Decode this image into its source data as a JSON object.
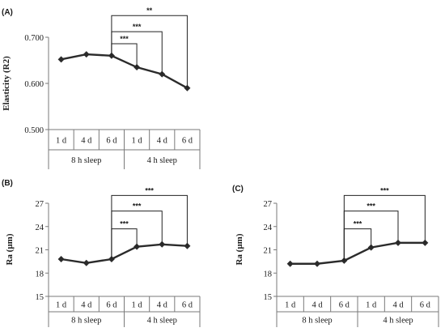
{
  "chart_data": [
    {
      "type": "line",
      "panel_label": "(A)",
      "ylabel": "Elasticity (R2)",
      "ylim": [
        0.5,
        0.7
      ],
      "yticks": [
        "0.500",
        "0.600",
        "0.700"
      ],
      "categories": [
        "1 d",
        "4 d",
        "6 d",
        "1 d",
        "4 d",
        "6 d"
      ],
      "groups": [
        {
          "label": "8 h sleep",
          "span": [
            0,
            2
          ]
        },
        {
          "label": "4 h sleep",
          "span": [
            3,
            5
          ]
        }
      ],
      "values": [
        0.652,
        0.663,
        0.66,
        0.635,
        0.62,
        0.59
      ],
      "significance": [
        {
          "from": 2,
          "to": 3,
          "label": "***",
          "y": 0.686
        },
        {
          "from": 2,
          "to": 4,
          "label": "***",
          "y": 0.712
        },
        {
          "from": 2,
          "to": 5,
          "label": "**",
          "y": 0.747
        }
      ]
    },
    {
      "type": "line",
      "panel_label": "(B)",
      "ylabel": "Ra (µm)",
      "ylim": [
        15,
        27
      ],
      "yticks": [
        "15",
        "18",
        "21",
        "24",
        "27"
      ],
      "categories": [
        "1 d",
        "4 d",
        "6 d",
        "1 d",
        "4 d",
        "6 d"
      ],
      "groups": [
        {
          "label": "8 h sleep",
          "span": [
            0,
            2
          ]
        },
        {
          "label": "4 h sleep",
          "span": [
            3,
            5
          ]
        }
      ],
      "values": [
        19.8,
        19.3,
        19.8,
        21.4,
        21.7,
        21.5
      ],
      "significance": [
        {
          "from": 2,
          "to": 3,
          "label": "***",
          "y": 23.7
        },
        {
          "from": 2,
          "to": 4,
          "label": "***",
          "y": 26.0
        },
        {
          "from": 2,
          "to": 5,
          "label": "***",
          "y": 28.0
        }
      ]
    },
    {
      "type": "line",
      "panel_label": "(C)",
      "ylabel": "Ra (µm)",
      "ylim": [
        15,
        27
      ],
      "yticks": [
        "15",
        "18",
        "21",
        "24",
        "27"
      ],
      "categories": [
        "1 d",
        "4 d",
        "6 d",
        "1 d",
        "4 d",
        "6 d"
      ],
      "groups": [
        {
          "label": "8 h sleep",
          "span": [
            0,
            2
          ]
        },
        {
          "label": "4 h sleep",
          "span": [
            3,
            5
          ]
        }
      ],
      "values": [
        19.2,
        19.2,
        19.6,
        21.3,
        21.9,
        21.9
      ],
      "significance": [
        {
          "from": 2,
          "to": 3,
          "label": "***",
          "y": 23.7
        },
        {
          "from": 2,
          "to": 4,
          "label": "***",
          "y": 26.0
        },
        {
          "from": 2,
          "to": 5,
          "label": "***",
          "y": 28.0
        }
      ]
    }
  ],
  "colors": {
    "line": "#2b2b2b",
    "axis": "#7a7a7a",
    "bracket": "#222222"
  }
}
